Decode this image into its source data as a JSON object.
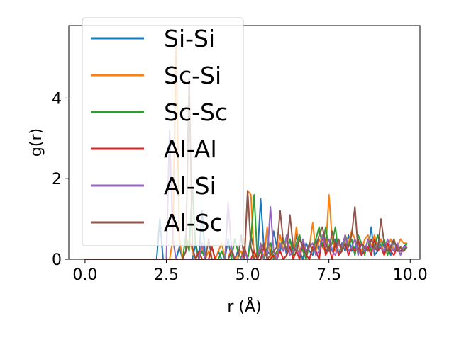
{
  "chart_data": {
    "type": "line",
    "title": "",
    "xlabel": "r (Å)",
    "ylabel": "g(r)",
    "xlim": [
      -0.5,
      10.3
    ],
    "ylim": [
      0,
      5.8
    ],
    "xticks": [
      0.0,
      2.5,
      5.0,
      7.5,
      10.0
    ],
    "xtick_labels": [
      "0.0",
      "2.5",
      "5.0",
      "7.5",
      "10.0"
    ],
    "yticks": [
      0,
      2,
      4
    ],
    "ytick_labels": [
      "0",
      "2",
      "4"
    ],
    "grid": false,
    "legend_position": "upper-left",
    "x": [
      0,
      0.2,
      0.4,
      0.6,
      0.8,
      1.0,
      1.2,
      1.4,
      1.6,
      1.8,
      2.0,
      2.1,
      2.2,
      2.3,
      2.4,
      2.5,
      2.6,
      2.7,
      2.8,
      2.9,
      3.0,
      3.1,
      3.2,
      3.3,
      3.4,
      3.5,
      3.6,
      3.7,
      3.8,
      3.9,
      4.0,
      4.1,
      4.2,
      4.3,
      4.4,
      4.5,
      4.6,
      4.7,
      4.8,
      4.9,
      5.0,
      5.1,
      5.2,
      5.3,
      5.4,
      5.5,
      5.6,
      5.7,
      5.8,
      5.9,
      6.0,
      6.1,
      6.2,
      6.3,
      6.4,
      6.5,
      6.6,
      6.7,
      6.8,
      6.9,
      7.0,
      7.1,
      7.2,
      7.3,
      7.4,
      7.5,
      7.6,
      7.7,
      7.8,
      7.9,
      8.0,
      8.1,
      8.2,
      8.3,
      8.4,
      8.5,
      8.6,
      8.7,
      8.8,
      8.9,
      9.0,
      9.1,
      9.2,
      9.3,
      9.4,
      9.5,
      9.6,
      9.7,
      9.8,
      9.9
    ],
    "series": [
      {
        "name": "Si-Si",
        "color": "#1f77b4",
        "values": [
          0,
          0,
          0,
          0,
          0,
          0,
          0,
          0,
          0,
          0,
          0,
          0,
          0,
          1.0,
          0,
          0,
          0,
          0,
          0,
          0.3,
          0,
          0,
          0,
          0,
          0.4,
          0,
          1.2,
          0,
          0,
          0.3,
          0,
          0.2,
          0,
          0,
          0.5,
          0,
          0,
          0.2,
          0,
          0,
          0,
          0.6,
          0.2,
          0,
          1.5,
          0.3,
          0.2,
          0.1,
          0.7,
          0.3,
          0.2,
          0.5,
          0.1,
          0.5,
          0.2,
          0.6,
          0.2,
          0,
          0.4,
          0.2,
          0.1,
          0.5,
          0.2,
          0.6,
          0.2,
          0.3,
          0.2,
          0.5,
          0.1,
          0.4,
          0.2,
          0.6,
          0.2,
          0.3,
          0.5,
          0.1,
          0.3,
          0.2,
          0.8,
          0.1,
          0.2,
          0.5,
          0.3,
          0.3,
          0.1,
          0.5,
          0.2,
          0.2,
          0.3,
          0.4
        ]
      },
      {
        "name": "Sc-Si",
        "color": "#ff7f0e",
        "values": [
          0,
          0,
          0,
          0,
          0,
          0,
          0,
          0,
          0,
          0,
          0,
          0,
          0,
          0,
          0,
          0,
          0,
          0.5,
          5.4,
          0.5,
          0,
          0.2,
          0.5,
          0.2,
          0,
          0,
          0.3,
          0,
          0.2,
          0,
          0,
          0.2,
          0.4,
          0,
          0,
          0.3,
          0,
          0.1,
          0.2,
          0,
          1.7,
          1.6,
          0,
          0.2,
          0.3,
          0,
          0.8,
          0,
          0.2,
          0.1,
          0.6,
          0.2,
          0.5,
          0.3,
          0.1,
          0.8,
          0.2,
          0.4,
          0.1,
          0.3,
          0.9,
          0.2,
          0.5,
          0.3,
          0.2,
          1.6,
          0.5,
          0.2,
          0.4,
          0.2,
          0.6,
          0.4,
          0.7,
          0.5,
          0.3,
          0.2,
          0.5,
          0.6,
          0.3,
          0.6,
          0.3,
          0.5,
          0.1,
          0.3,
          0.5,
          0.2,
          0.3,
          0.5,
          0.4,
          0.4
        ]
      },
      {
        "name": "Sc-Sc",
        "color": "#2ca02c",
        "values": [
          0,
          0,
          0,
          0,
          0,
          0,
          0,
          0,
          0,
          0,
          0,
          0,
          0,
          0,
          0,
          0,
          0,
          0,
          0,
          0,
          0,
          0.6,
          0.2,
          1.8,
          0.3,
          0,
          0.2,
          0,
          0,
          0.3,
          0,
          0,
          0.2,
          0,
          0,
          0,
          0.5,
          0.2,
          0,
          0.3,
          0,
          0.5,
          1.6,
          0,
          0.2,
          0,
          0.3,
          0.4,
          0,
          0.2,
          0.3,
          0.5,
          0.2,
          0.5,
          0.1,
          0.4,
          0.6,
          0.2,
          0,
          0.4,
          0.2,
          0.5,
          0.8,
          0.3,
          0.8,
          0.2,
          0.4,
          0.8,
          0.1,
          0.2,
          0.6,
          0.3,
          0.5,
          0.1,
          0.6,
          0.4,
          0.1,
          0.5,
          0.2,
          0.3,
          0.6,
          0.3,
          0.5,
          0.1,
          0.3,
          0.5,
          0.2,
          0.3,
          0.2,
          0.4
        ]
      },
      {
        "name": "Al-Al",
        "color": "#d62728",
        "values": [
          0,
          0,
          0,
          0,
          0,
          0,
          0,
          0,
          0,
          0,
          0,
          0,
          0,
          0,
          0,
          0,
          0,
          0,
          0,
          0,
          0,
          0,
          0,
          0,
          0,
          0.2,
          0,
          0,
          0,
          0.3,
          0,
          0,
          0,
          0,
          0,
          0.2,
          0,
          0,
          0,
          0.3,
          0,
          0,
          0.2,
          0,
          0,
          0.3,
          0,
          0,
          0.1,
          0,
          0.2,
          0,
          0.1,
          0.3,
          0,
          0.2,
          0,
          0.4,
          0.1,
          0,
          0.3,
          0.2,
          0,
          0.6,
          0.1,
          0.3,
          0,
          0.4,
          0.1,
          0.2,
          0.4,
          0.1,
          0.3,
          0.2,
          0.5,
          0.1,
          0.2,
          0.3,
          0.1,
          0.5,
          0.2,
          0.3,
          0.1,
          0.4,
          0.2,
          0.1,
          0.3,
          0.2,
          0.2,
          0.3
        ]
      },
      {
        "name": "Al-Si",
        "color": "#9467bd",
        "values": [
          0,
          0,
          0,
          0,
          0,
          0,
          0,
          0,
          0,
          0,
          0,
          0,
          0,
          0,
          0,
          0,
          3.2,
          0.5,
          0,
          0,
          0,
          0,
          0,
          0,
          0,
          0,
          0.4,
          0,
          0,
          0,
          0,
          0,
          0,
          0,
          1.4,
          0.3,
          0,
          0,
          0,
          0.2,
          0,
          0,
          0,
          0,
          0.4,
          0,
          0,
          1.3,
          0.2,
          0,
          0.4,
          0.2,
          0.6,
          0.1,
          0.2,
          0.3,
          0.1,
          0.5,
          0.2,
          0.3,
          0.4,
          0.1,
          0.2,
          0.6,
          0.3,
          0.5,
          0.2,
          0.1,
          0.4,
          0.3,
          0.6,
          0.2,
          0.3,
          0.5,
          0.1,
          0.4,
          0.2,
          0.5,
          0.3,
          0.2,
          0.4,
          0.3,
          0.2,
          0.5,
          0.3,
          0.2,
          0.4,
          0.1,
          0.3,
          0.3
        ]
      },
      {
        "name": "Al-Sc",
        "color": "#8c564b",
        "values": [
          0,
          0,
          0,
          0,
          0,
          0,
          0,
          0,
          0,
          0,
          0,
          0,
          0,
          0,
          0,
          0,
          0,
          0,
          0,
          0,
          0,
          0.2,
          4.5,
          0.3,
          0,
          0,
          0,
          0,
          0.5,
          0,
          0,
          0,
          0,
          0,
          0,
          0.2,
          0,
          0,
          0.6,
          0,
          1.7,
          0.3,
          0,
          0,
          0.2,
          0.4,
          0,
          0.1,
          0.2,
          0.3,
          1.2,
          0.4,
          0.2,
          1.1,
          0.3,
          0.2,
          0.5,
          0.3,
          0.1,
          0.4,
          0.2,
          0.3,
          0.6,
          0.8,
          0.4,
          0.2,
          0.7,
          0.3,
          0.5,
          0.2,
          0.4,
          0.3,
          0.6,
          1.3,
          0.2,
          0.4,
          0.3,
          0.2,
          0.5,
          0.3,
          0.2,
          1.0,
          0.4,
          0.2,
          0.3,
          0.5,
          0.2,
          0.3,
          0.2,
          0.3
        ]
      }
    ]
  }
}
